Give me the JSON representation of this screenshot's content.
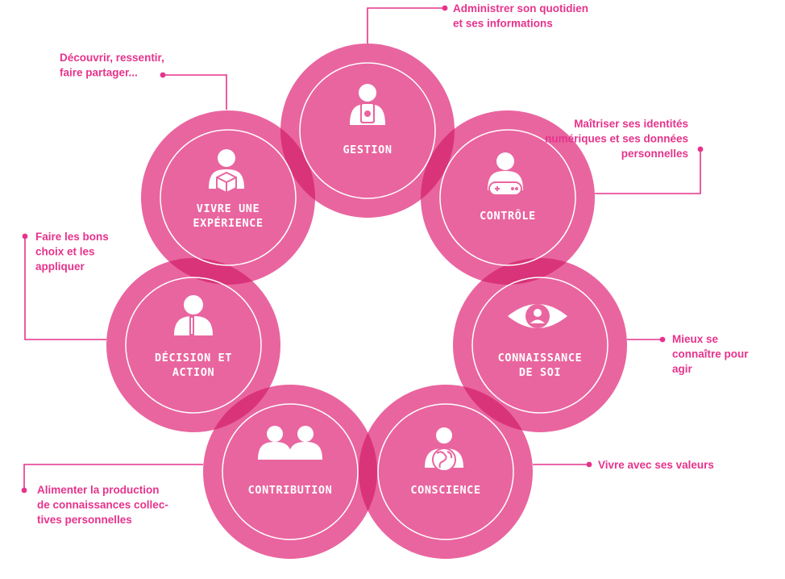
{
  "colors": {
    "circle_fill": "#e9659f",
    "circle_overlap": "#d9347a",
    "ring": "#ffffff",
    "annotation": "#e6338c",
    "icon": "#ffffff"
  },
  "nodes": [
    {
      "id": "gestion",
      "label_lines": [
        "GESTION"
      ],
      "icon": "person-phone-icon"
    },
    {
      "id": "controle",
      "label_lines": [
        "CONTRÔLE"
      ],
      "icon": "person-gamepad-icon"
    },
    {
      "id": "connaissance",
      "label_lines": [
        "CONNAISSANCE",
        "DE SOI"
      ],
      "icon": "eye-icon"
    },
    {
      "id": "conscience",
      "label_lines": [
        "CONSCIENCE"
      ],
      "icon": "person-globe-icon"
    },
    {
      "id": "contribution",
      "label_lines": [
        "CONTRIBUTION"
      ],
      "icon": "two-people-icon"
    },
    {
      "id": "decision",
      "label_lines": [
        "DÉCISION ET",
        "ACTION"
      ],
      "icon": "person-headset-icon"
    },
    {
      "id": "experience",
      "label_lines": [
        "VIVRE UNE",
        "EXPÉRIENCE"
      ],
      "icon": "person-cube-icon"
    }
  ],
  "annotations": [
    {
      "id": "gestion",
      "lines": [
        "Administrer son quotidien",
        "et ses informations"
      ]
    },
    {
      "id": "controle",
      "lines": [
        "Maîtriser ses identités",
        "numériques et ses données",
        "personnelles"
      ]
    },
    {
      "id": "connaissance",
      "lines": [
        "Mieux se",
        "connaître pour",
        "agir"
      ]
    },
    {
      "id": "conscience",
      "lines": [
        "Vivre avec ses valeurs"
      ]
    },
    {
      "id": "contribution",
      "lines": [
        "Alimenter la production",
        "de connaissances collec-",
        "tives personnelles"
      ]
    },
    {
      "id": "decision",
      "lines": [
        "Faire les bons",
        "choix et les",
        "appliquer"
      ]
    },
    {
      "id": "experience",
      "lines": [
        "Découvrir, ressentir,",
        "faire partager..."
      ]
    }
  ]
}
